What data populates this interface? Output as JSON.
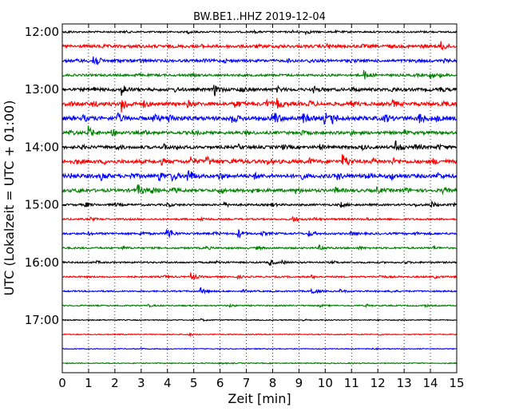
{
  "chart_data": {
    "type": "line",
    "title": "BW.BE1..HHZ 2019-12-04",
    "xlabel": "Zeit  [min]",
    "ylabel": "UTC (Lokalzeit = UTC + 01:00)",
    "xlim": [
      0,
      15
    ],
    "x_ticks": [
      "0",
      "1",
      "2",
      "3",
      "4",
      "5",
      "6",
      "7",
      "8",
      "9",
      "10",
      "11",
      "12",
      "13",
      "14",
      "15"
    ],
    "y_ticks": [
      "12:00",
      "13:00",
      "14:00",
      "15:00",
      "16:00",
      "17:00"
    ],
    "grid": "vertical dotted at each minute",
    "colors": [
      "#000000",
      "#ff0000",
      "#0000ff",
      "#008000"
    ],
    "traces": [
      {
        "start": "12:00",
        "amp": 1.0,
        "events": [
          [
            0.2,
            0.5
          ],
          [
            2.4,
            0.4
          ],
          [
            4.8,
            0.6
          ],
          [
            7.3,
            0.5
          ],
          [
            8.8,
            0.7
          ],
          [
            9.3,
            1.0
          ],
          [
            10.4,
            0.4
          ],
          [
            13.6,
            0.4
          ]
        ]
      },
      {
        "start": "12:15",
        "amp": 1.8,
        "events": [
          [
            1.5,
            0.5
          ],
          [
            2.8,
            0.4
          ],
          [
            5.3,
            0.6
          ],
          [
            7.4,
            0.5
          ],
          [
            8.2,
            0.5
          ],
          [
            10.1,
            1.2
          ],
          [
            11.4,
            0.7
          ],
          [
            12.4,
            0.6
          ],
          [
            13.7,
            0.6
          ],
          [
            14.45,
            2.6
          ]
        ]
      },
      {
        "start": "12:30",
        "amp": 1.6,
        "events": [
          [
            0.6,
            0.6
          ],
          [
            1.2,
            4.8
          ],
          [
            2.0,
            0.8
          ],
          [
            3.0,
            0.6
          ],
          [
            5.4,
            0.6
          ],
          [
            6.2,
            0.7
          ],
          [
            8.6,
            0.6
          ],
          [
            9.4,
            1.0
          ],
          [
            11.0,
            0.7
          ],
          [
            13.4,
            0.7
          ],
          [
            14.5,
            0.8
          ]
        ]
      },
      {
        "start": "12:45",
        "amp": 1.4,
        "events": [
          [
            2.8,
            0.7
          ],
          [
            5.0,
            0.5
          ],
          [
            11.5,
            2.6
          ],
          [
            13.4,
            0.6
          ],
          [
            14.0,
            2.0
          ],
          [
            14.4,
            0.6
          ]
        ]
      },
      {
        "start": "13:00",
        "amp": 1.8,
        "events": [
          [
            1.2,
            1.0
          ],
          [
            2.3,
            3.0
          ],
          [
            4.3,
            1.0
          ],
          [
            5.8,
            3.4
          ],
          [
            6.8,
            1.5
          ],
          [
            8.2,
            1.2
          ],
          [
            9.6,
            1.4
          ],
          [
            11.0,
            1.2
          ],
          [
            12.5,
            1.4
          ],
          [
            14.3,
            1.8
          ]
        ]
      },
      {
        "start": "13:15",
        "amp": 2.2,
        "events": [
          [
            0.3,
            1.2
          ],
          [
            1.2,
            1.2
          ],
          [
            2.3,
            4.5
          ],
          [
            3.1,
            1.5
          ],
          [
            4.8,
            1.3
          ],
          [
            6.6,
            2.0
          ],
          [
            7.8,
            1.6
          ],
          [
            8.2,
            2.6
          ],
          [
            9.4,
            1.4
          ],
          [
            11.0,
            1.5
          ],
          [
            12.6,
            1.5
          ],
          [
            14.5,
            1.5
          ]
        ]
      },
      {
        "start": "13:30",
        "amp": 2.4,
        "events": [
          [
            0.8,
            1.5
          ],
          [
            2.1,
            3.0
          ],
          [
            3.5,
            1.6
          ],
          [
            4.1,
            2.2
          ],
          [
            6.5,
            2.2
          ],
          [
            8.0,
            2.0
          ],
          [
            8.1,
            2.0
          ],
          [
            9.2,
            2.4
          ],
          [
            10.0,
            3.2
          ],
          [
            10.3,
            2.2
          ],
          [
            12.3,
            2.0
          ],
          [
            13.6,
            3.0
          ],
          [
            14.2,
            1.5
          ]
        ]
      },
      {
        "start": "13:45",
        "amp": 1.8,
        "events": [
          [
            0.3,
            1.3
          ],
          [
            1.0,
            3.6
          ],
          [
            1.9,
            2.2
          ],
          [
            3.2,
            1.0
          ],
          [
            5.0,
            1.0
          ],
          [
            7.0,
            1.0
          ],
          [
            9.1,
            1.0
          ],
          [
            11.0,
            1.0
          ],
          [
            13.0,
            1.0
          ]
        ]
      },
      {
        "start": "14:00",
        "amp": 1.8,
        "events": [
          [
            0.7,
            1.0
          ],
          [
            2.1,
            1.0
          ],
          [
            3.9,
            1.2
          ],
          [
            4.4,
            1.2
          ],
          [
            6.7,
            1.2
          ],
          [
            8.4,
            1.0
          ],
          [
            9.8,
            1.2
          ],
          [
            11.4,
            1.2
          ],
          [
            12.7,
            4.0
          ],
          [
            13.4,
            2.0
          ],
          [
            14.3,
            1.4
          ]
        ]
      },
      {
        "start": "14:15",
        "amp": 2.2,
        "events": [
          [
            0.5,
            1.2
          ],
          [
            1.6,
            1.0
          ],
          [
            3.8,
            1.2
          ],
          [
            4.9,
            2.2
          ],
          [
            5.5,
            2.6
          ],
          [
            6.5,
            1.4
          ],
          [
            7.8,
            1.2
          ],
          [
            9.4,
            1.4
          ],
          [
            10.7,
            4.0
          ],
          [
            11.8,
            1.4
          ],
          [
            12.6,
            1.4
          ],
          [
            14.1,
            1.4
          ]
        ]
      },
      {
        "start": "14:30",
        "amp": 2.2,
        "events": [
          [
            0.3,
            1.0
          ],
          [
            1.5,
            2.0
          ],
          [
            2.6,
            1.4
          ],
          [
            3.7,
            2.6
          ],
          [
            4.2,
            2.6
          ],
          [
            4.8,
            4.2
          ],
          [
            6.0,
            1.6
          ],
          [
            7.3,
            1.4
          ],
          [
            9.1,
            1.4
          ],
          [
            10.5,
            1.6
          ],
          [
            11.5,
            1.4
          ],
          [
            12.5,
            2.0
          ],
          [
            14.3,
            1.4
          ]
        ]
      },
      {
        "start": "14:45",
        "amp": 1.9,
        "events": [
          [
            0.6,
            1.0
          ],
          [
            2.9,
            3.0
          ],
          [
            3.4,
            1.8
          ],
          [
            4.2,
            1.4
          ],
          [
            6.0,
            1.4
          ],
          [
            7.2,
            1.2
          ],
          [
            8.9,
            1.4
          ],
          [
            10.4,
            1.4
          ],
          [
            12.0,
            1.2
          ],
          [
            13.0,
            1.4
          ],
          [
            14.5,
            1.2
          ]
        ]
      },
      {
        "start": "15:00",
        "amp": 1.2,
        "events": [
          [
            0.9,
            1.4
          ],
          [
            2.0,
            1.0
          ],
          [
            4.0,
            1.0
          ],
          [
            6.2,
            1.0
          ],
          [
            8.0,
            0.8
          ],
          [
            10.6,
            1.4
          ],
          [
            13.4,
            0.8
          ],
          [
            14.0,
            2.2
          ],
          [
            14.9,
            1.0
          ]
        ]
      },
      {
        "start": "15:15",
        "amp": 1.1,
        "events": [
          [
            1.1,
            0.8
          ],
          [
            5.3,
            1.0
          ],
          [
            8.8,
            2.0
          ],
          [
            9.6,
            0.6
          ],
          [
            11.6,
            0.6
          ]
        ]
      },
      {
        "start": "15:30",
        "amp": 1.2,
        "events": [
          [
            1.0,
            0.6
          ],
          [
            3.0,
            1.2
          ],
          [
            4.0,
            4.2
          ],
          [
            5.8,
            0.8
          ],
          [
            6.7,
            3.0
          ],
          [
            7.6,
            1.0
          ],
          [
            9.4,
            1.6
          ],
          [
            11.0,
            1.0
          ],
          [
            13.4,
            1.0
          ]
        ]
      },
      {
        "start": "15:45",
        "amp": 1.1,
        "events": [
          [
            2.3,
            0.8
          ],
          [
            5.5,
            0.6
          ],
          [
            7.4,
            0.6
          ],
          [
            9.8,
            1.4
          ],
          [
            11.3,
            0.6
          ],
          [
            14.1,
            0.8
          ]
        ]
      },
      {
        "start": "16:00",
        "amp": 1.0,
        "events": [
          [
            1.3,
            0.6
          ],
          [
            5.9,
            0.8
          ],
          [
            7.9,
            1.8
          ],
          [
            8.4,
            0.8
          ],
          [
            10.3,
            0.6
          ],
          [
            13.0,
            0.6
          ]
        ]
      },
      {
        "start": "16:15",
        "amp": 1.0,
        "events": [
          [
            3.9,
            0.6
          ],
          [
            4.9,
            2.8
          ],
          [
            6.7,
            0.6
          ],
          [
            9.5,
            0.8
          ],
          [
            12.1,
            0.8
          ],
          [
            14.2,
            0.6
          ]
        ]
      },
      {
        "start": "16:30",
        "amp": 0.9,
        "events": [
          [
            5.3,
            1.8
          ],
          [
            6.9,
            0.6
          ],
          [
            9.5,
            2.2
          ],
          [
            10.6,
            0.8
          ],
          [
            12.5,
            0.6
          ]
        ]
      },
      {
        "start": "16:45",
        "amp": 0.8,
        "events": [
          [
            3.3,
            0.5
          ],
          [
            6.4,
            0.6
          ],
          [
            9.8,
            0.6
          ],
          [
            11.6,
            0.6
          ],
          [
            13.8,
            0.5
          ]
        ]
      },
      {
        "start": "17:00",
        "amp": 0.6,
        "events": [
          [
            5.3,
            0.6
          ],
          [
            9.2,
            0.4
          ],
          [
            12.8,
            0.4
          ]
        ]
      },
      {
        "start": "17:15",
        "amp": 0.6,
        "events": [
          [
            4.8,
            0.8
          ],
          [
            12.0,
            0.4
          ]
        ]
      },
      {
        "start": "17:30",
        "amp": 0.5,
        "events": [
          [
            3.0,
            0.3
          ],
          [
            11.8,
            0.3
          ]
        ]
      },
      {
        "start": "17:45",
        "amp": 0.6,
        "events": [
          [
            6.0,
            0.3
          ],
          [
            11.0,
            0.3
          ]
        ]
      }
    ]
  }
}
